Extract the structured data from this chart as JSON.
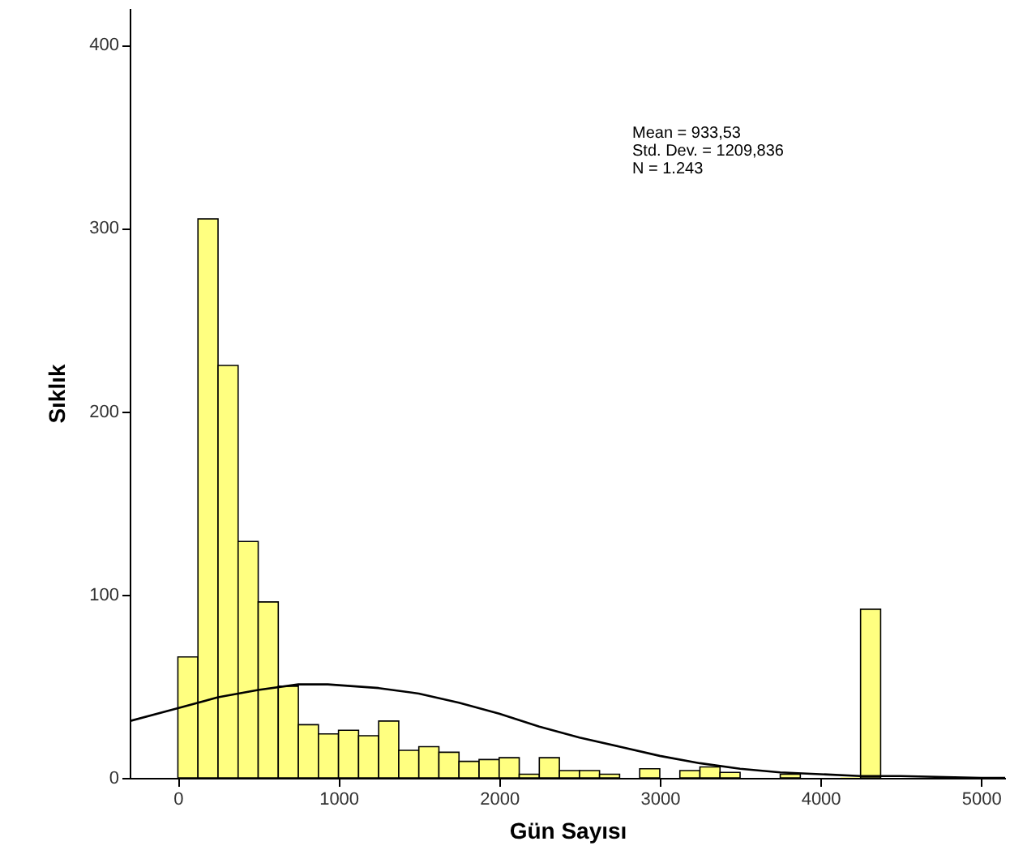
{
  "chart_data": {
    "type": "histogram",
    "xlabel": "Gün Sayısı",
    "ylabel": "Sıklık",
    "color": "#ffff80",
    "bins": [
      0,
      125,
      250,
      375,
      500,
      625,
      750,
      875,
      1000,
      1125,
      1250,
      1375,
      1500,
      1625,
      1750,
      1875,
      2000,
      2125,
      2250,
      2375,
      2500,
      2625,
      2750,
      2875,
      3000,
      3125,
      3250,
      3375,
      3500,
      3625,
      3750,
      3875,
      4000,
      4125,
      4250,
      4375
    ],
    "values": [
      66,
      305,
      225,
      129,
      96,
      50,
      29,
      24,
      26,
      23,
      31,
      15,
      17,
      14,
      9,
      10,
      11,
      2,
      11,
      4,
      4,
      2,
      null,
      5,
      null,
      4,
      6,
      3,
      null,
      null,
      2,
      null,
      null,
      0,
      92
    ],
    "series": [
      {
        "type": "line",
        "color": "#000000",
        "x": [
          -300,
          0,
          250,
          500,
          750,
          933,
          1250,
          1500,
          1750,
          2000,
          2250,
          2500,
          2750,
          3000,
          3250,
          3500,
          3750,
          4000,
          4250,
          4500,
          5000,
          5150
        ],
        "values": [
          31,
          38,
          44,
          48,
          51,
          51,
          49,
          46,
          41,
          35,
          28,
          22,
          17,
          12,
          8,
          5,
          3,
          2,
          1,
          1,
          0,
          0
        ]
      }
    ],
    "xlim": [
      -300,
      5150
    ],
    "ylim": [
      0,
      420
    ],
    "xticks": [
      0,
      1000,
      2000,
      3000,
      4000,
      5000
    ],
    "yticks": [
      0,
      100,
      200,
      300,
      400
    ],
    "grid": false,
    "annotations": [
      "Mean = 933,53",
      "Std. Dev. = 1209,836",
      "N = 1.243"
    ]
  }
}
